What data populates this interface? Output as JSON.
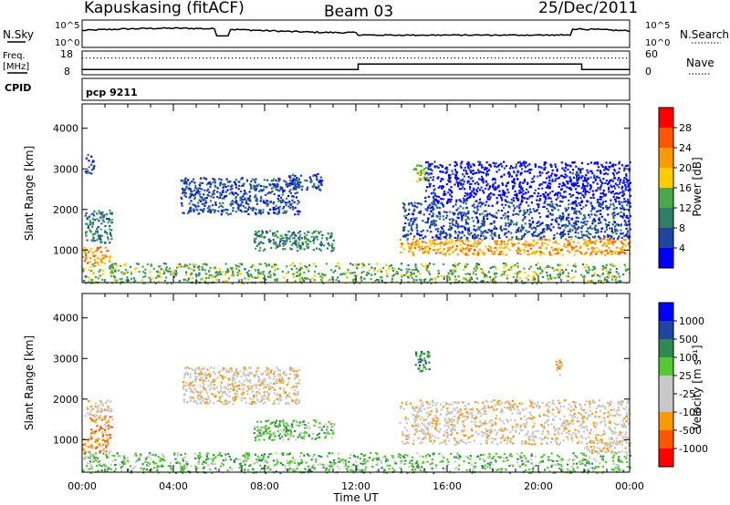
{
  "header": {
    "station": "Kapuskasing (fitACF)",
    "beam": "Beam 03",
    "date": "25/Dec/2011"
  },
  "top_panels": {
    "nsky_label": "N.Sky",
    "nsky_ticks": [
      "10^5",
      "10^0"
    ],
    "nsearch_label": "N.Search",
    "nsearch_ticks": [
      "10^5",
      "10^0"
    ],
    "freq_label_1": "Freq.",
    "freq_label_2": "[MHz]",
    "freq_ticks": [
      "18",
      "8"
    ],
    "nave_label": "Nave",
    "nave_ticks": [
      "60",
      "0"
    ],
    "cpid_label": "CPID",
    "cpid_value": "pcp 9211"
  },
  "time_axis": {
    "label": "Time UT",
    "ticks": [
      "00:00",
      "04:00",
      "08:00",
      "12:00",
      "16:00",
      "20:00",
      "00:00"
    ]
  },
  "colors": {
    "power": [
      "#0000ff",
      "#1e46a0",
      "#2f7d6a",
      "#4aa84a",
      "#ffcc00",
      "#ff9900",
      "#ff5500",
      "#ff0000"
    ],
    "velocity": [
      "#ff0000",
      "#ff5500",
      "#ff9900",
      "#c8c8c8",
      "#c8c8c8",
      "#55c832",
      "#2f8a50",
      "#1e46a0",
      "#0000ff"
    ]
  },
  "chart_data": [
    {
      "type": "heatmap",
      "name": "power",
      "ylabel": "Slant Range [km]",
      "yticks": [
        "1000",
        "2000",
        "3000",
        "4000"
      ],
      "ylim": [
        200,
        4600
      ],
      "xlim_hours": [
        0,
        24
      ],
      "colorbar_label": "Power [dB]",
      "colorbar_ticks": [
        "4",
        "8",
        "12",
        "16",
        "20",
        "24",
        "28"
      ],
      "regions": [
        {
          "t0": 0.0,
          "t1": 1.2,
          "r0": 700,
          "r1": 1100,
          "level": 5
        },
        {
          "t0": 0.1,
          "t1": 1.3,
          "r0": 1200,
          "r1": 2000,
          "level": 2
        },
        {
          "t0": 0.1,
          "t1": 0.5,
          "r0": 2900,
          "r1": 3400,
          "level": 1
        },
        {
          "t0": 4.3,
          "t1": 9.5,
          "r0": 1900,
          "r1": 2800,
          "level": 1
        },
        {
          "t0": 7.5,
          "t1": 11.0,
          "r0": 1000,
          "r1": 1500,
          "level": 2
        },
        {
          "t0": 9.0,
          "t1": 10.5,
          "r0": 2500,
          "r1": 2900,
          "level": 1
        },
        {
          "t0": 13.9,
          "t1": 24.0,
          "r0": 900,
          "r1": 1300,
          "level": 5
        },
        {
          "t0": 14.0,
          "t1": 24.0,
          "r0": 1300,
          "r1": 2200,
          "level": 1
        },
        {
          "t0": 14.5,
          "t1": 15.2,
          "r0": 2700,
          "r1": 3200,
          "level": 3
        },
        {
          "t0": 15.0,
          "t1": 24.0,
          "r0": 2200,
          "r1": 3200,
          "level": 0
        },
        {
          "t0": 0.0,
          "t1": 24.0,
          "r0": 200,
          "r1": 700,
          "level": 3
        }
      ]
    },
    {
      "type": "heatmap",
      "name": "velocity",
      "ylabel": "Slant Range [km]",
      "yticks": [
        "1000",
        "2000",
        "3000",
        "4000"
      ],
      "ylim": [
        200,
        4600
      ],
      "xlim_hours": [
        0,
        24
      ],
      "colorbar_label": "Velocity [m s⁻¹]",
      "colorbar_ticks": [
        "1000",
        "500",
        "100",
        "25",
        "-25",
        "-100",
        "-500",
        "-1000"
      ],
      "regions": [
        {
          "t0": 0.0,
          "t1": 1.2,
          "r0": 700,
          "r1": 1100,
          "level": 2
        },
        {
          "t0": 0.3,
          "t1": 1.3,
          "r0": 1100,
          "r1": 1600,
          "level": 2
        },
        {
          "t0": 0.1,
          "t1": 1.3,
          "r0": 1600,
          "r1": 2000,
          "level": 3
        },
        {
          "t0": 4.3,
          "t1": 9.5,
          "r0": 1900,
          "r1": 2800,
          "level": 3
        },
        {
          "t0": 7.5,
          "t1": 11.0,
          "r0": 1000,
          "r1": 1500,
          "level": 5
        },
        {
          "t0": 14.5,
          "t1": 15.2,
          "r0": 2700,
          "r1": 3200,
          "level": 6
        },
        {
          "t0": 13.9,
          "t1": 24.0,
          "r0": 900,
          "r1": 2000,
          "level": 3
        },
        {
          "t0": 22.0,
          "t1": 24.0,
          "r0": 700,
          "r1": 1000,
          "level": 3
        },
        {
          "t0": 20.7,
          "t1": 21.0,
          "r0": 2600,
          "r1": 3000,
          "level": 2
        },
        {
          "t0": 0.0,
          "t1": 24.0,
          "r0": 200,
          "r1": 700,
          "level": 5
        }
      ]
    }
  ]
}
